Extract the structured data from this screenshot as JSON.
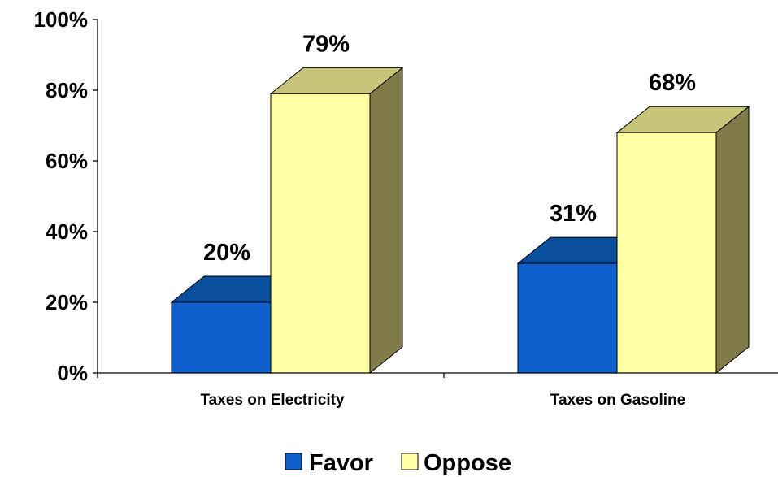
{
  "chart_data": {
    "type": "bar",
    "title": "",
    "xlabel": "",
    "ylabel": "",
    "categories": [
      "Taxes on Electricity",
      "Taxes on Gasoline"
    ],
    "series": [
      {
        "name": "Favor",
        "values": [
          20,
          31
        ],
        "labels": [
          "20%",
          "31%"
        ],
        "color": "#0F5FCE",
        "top_color": "#0A4E9E",
        "side_color": "#0A4A92"
      },
      {
        "name": "Oppose",
        "values": [
          79,
          68
        ],
        "labels": [
          "79%",
          "68%"
        ],
        "color": "#FFFFA6",
        "top_color": "#C8C47A",
        "side_color": "#807B48"
      }
    ],
    "ylim": [
      0,
      100
    ],
    "y_ticks": [
      0,
      20,
      40,
      60,
      80,
      100
    ],
    "y_tick_labels": [
      "0%",
      "20%",
      "40%",
      "60%",
      "80%",
      "100%"
    ],
    "three_d": true,
    "grid": false,
    "legend_position": "bottom"
  }
}
